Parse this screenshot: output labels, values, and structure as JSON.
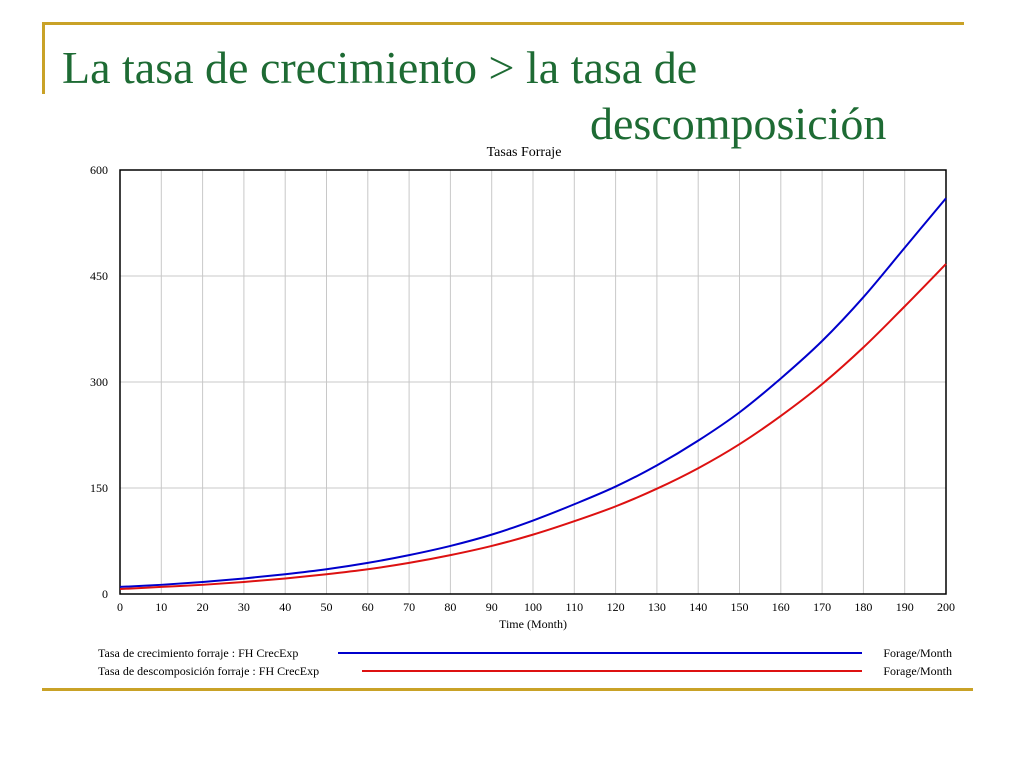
{
  "slide": {
    "title_line1": "La tasa de crecimiento > la tasa de",
    "title_line2": "descomposición",
    "accent_color": "#c9a227",
    "title_color": "#1e6b34"
  },
  "chart_data": {
    "type": "line",
    "title": "Tasas Forraje",
    "xlabel": "Time (Month)",
    "ylabel": "",
    "xlim": [
      0,
      200
    ],
    "ylim": [
      0,
      600
    ],
    "xticks": [
      0,
      10,
      20,
      30,
      40,
      50,
      60,
      70,
      80,
      90,
      100,
      110,
      120,
      130,
      140,
      150,
      160,
      170,
      180,
      190,
      200
    ],
    "yticks": [
      0,
      150,
      300,
      450,
      600
    ],
    "grid": true,
    "x": [
      0,
      10,
      20,
      30,
      40,
      50,
      60,
      70,
      80,
      90,
      100,
      110,
      120,
      130,
      140,
      150,
      160,
      170,
      180,
      190,
      200
    ],
    "series": [
      {
        "name": "Tasa de crecimiento forraje : FH CrecExp",
        "unit": "Forage/Month",
        "color": "#0000cc",
        "values": [
          10,
          13,
          17,
          22,
          28,
          35,
          44,
          55,
          68,
          84,
          104,
          127,
          152,
          182,
          217,
          257,
          305,
          358,
          420,
          490,
          560
        ]
      },
      {
        "name": "Tasa de descomposición forraje : FH CrecExp",
        "unit": "Forage/Month",
        "color": "#dd1111",
        "values": [
          7,
          10,
          13,
          17,
          22,
          28,
          35,
          44,
          55,
          68,
          84,
          103,
          124,
          149,
          178,
          212,
          252,
          297,
          349,
          407,
          467
        ]
      }
    ]
  }
}
